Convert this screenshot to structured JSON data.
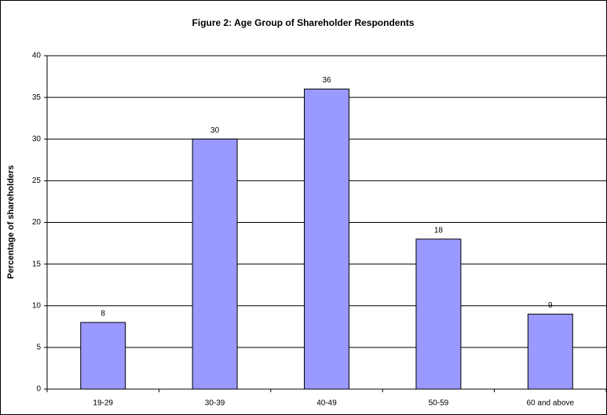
{
  "chart_data": {
    "type": "bar",
    "title": "Figure 2: Age Group of Shareholder Respondents",
    "y_label": "Percentage of shareholders",
    "categories": [
      "19-29",
      "30-39",
      "40-49",
      "50-59",
      "60 and above"
    ],
    "values": [
      8,
      30,
      36,
      18,
      9
    ],
    "color": "#9999ff",
    "ylim": [
      0,
      40
    ],
    "yticks": [
      0,
      5,
      10,
      15,
      20,
      25,
      30,
      35,
      40
    ],
    "grid": true
  }
}
